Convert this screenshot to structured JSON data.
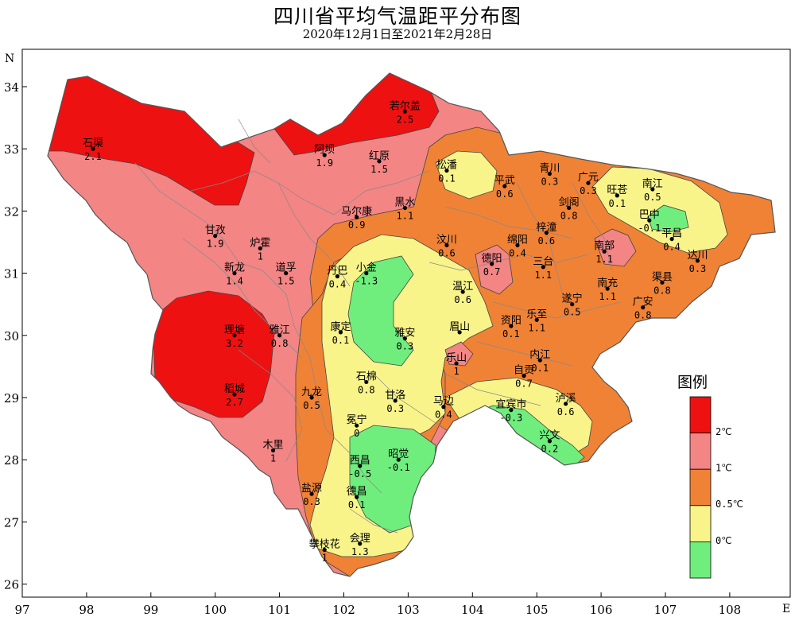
{
  "title": "四川省平均气温距平分布图",
  "subtitle": "2020年12月1日至2021年2月28日",
  "axes": {
    "lon_ticks": [
      "97",
      "98",
      "99",
      "100",
      "101",
      "102",
      "103",
      "104",
      "105",
      "106",
      "107",
      "108"
    ],
    "lat_ticks": [
      "34",
      "33",
      "32",
      "31",
      "30",
      "29",
      "28",
      "27",
      "26"
    ],
    "north_label": "N",
    "east_label": "E"
  },
  "legend": {
    "title": "图例",
    "classes": [
      {
        "label": "2℃",
        "color": "#ee1111"
      },
      {
        "label": "1℃",
        "color": "#f38585"
      },
      {
        "label": "0.5℃",
        "color": "#f08236"
      },
      {
        "label": "0℃",
        "color": "#f8f48a"
      },
      {
        "label": "",
        "color": "#6fee7e"
      }
    ]
  },
  "colors": {
    "class_2": "#ee1111",
    "class_1": "#f38585",
    "class_05": "#f08236",
    "class_0": "#f8f48a",
    "class_neg": "#6fee7e",
    "boundary": "#777777",
    "station": "#000000"
  },
  "stations": [
    {
      "name": "石渠",
      "value": "2.1",
      "lon": 98.1,
      "lat": 33.0
    },
    {
      "name": "阿坝",
      "value": "1.9",
      "lon": 101.7,
      "lat": 32.9
    },
    {
      "name": "若尔盖",
      "value": "2.5",
      "lon": 102.95,
      "lat": 33.6
    },
    {
      "name": "红原",
      "value": "1.5",
      "lon": 102.55,
      "lat": 32.8
    },
    {
      "name": "松潘",
      "value": "0.1",
      "lon": 103.6,
      "lat": 32.65
    },
    {
      "name": "平武",
      "value": "0.6",
      "lon": 104.5,
      "lat": 32.4
    },
    {
      "name": "青川",
      "value": "0.3",
      "lon": 105.2,
      "lat": 32.6
    },
    {
      "name": "广元",
      "value": "0.3",
      "lon": 105.8,
      "lat": 32.45
    },
    {
      "name": "旺苍",
      "value": "0.1",
      "lon": 106.25,
      "lat": 32.25
    },
    {
      "name": "南江",
      "value": "0.5",
      "lon": 106.8,
      "lat": 32.35
    },
    {
      "name": "剑阁",
      "value": "0.8",
      "lon": 105.5,
      "lat": 32.05
    },
    {
      "name": "黑水",
      "value": "1.1",
      "lon": 102.95,
      "lat": 32.05
    },
    {
      "name": "马尔康",
      "value": "0.9",
      "lon": 102.2,
      "lat": 31.9
    },
    {
      "name": "甘孜",
      "value": "1.9",
      "lon": 100.0,
      "lat": 31.6
    },
    {
      "name": "炉霍",
      "value": "1",
      "lon": 100.7,
      "lat": 31.4
    },
    {
      "name": "巴中",
      "value": "-0.1",
      "lon": 106.75,
      "lat": 31.85
    },
    {
      "name": "平昌",
      "value": "0.4",
      "lon": 107.1,
      "lat": 31.55
    },
    {
      "name": "绵阳",
      "value": "0.4",
      "lon": 104.7,
      "lat": 31.45
    },
    {
      "name": "梓潼",
      "value": "0.6",
      "lon": 105.15,
      "lat": 31.65
    },
    {
      "name": "汶川",
      "value": "0.6",
      "lon": 103.6,
      "lat": 31.45
    },
    {
      "name": "南部",
      "value": "1.1",
      "lon": 106.05,
      "lat": 31.35
    },
    {
      "name": "达川",
      "value": "0.3",
      "lon": 107.5,
      "lat": 31.2
    },
    {
      "name": "三台",
      "value": "1.1",
      "lon": 105.1,
      "lat": 31.1
    },
    {
      "name": "德阳",
      "value": "0.7",
      "lon": 104.3,
      "lat": 31.15
    },
    {
      "name": "新龙",
      "value": "1.4",
      "lon": 100.3,
      "lat": 31.0
    },
    {
      "name": "道孚",
      "value": "1.5",
      "lon": 101.1,
      "lat": 31.0
    },
    {
      "name": "丹巴",
      "value": "0.4",
      "lon": 101.9,
      "lat": 30.95
    },
    {
      "name": "小金",
      "value": "-1.3",
      "lon": 102.35,
      "lat": 31.0
    },
    {
      "name": "南充",
      "value": "1.1",
      "lon": 106.1,
      "lat": 30.75
    },
    {
      "name": "渠县",
      "value": "0.8",
      "lon": 106.95,
      "lat": 30.85
    },
    {
      "name": "温江",
      "value": "0.6",
      "lon": 103.85,
      "lat": 30.7
    },
    {
      "name": "遂宁",
      "value": "0.5",
      "lon": 105.55,
      "lat": 30.5
    },
    {
      "name": "广安",
      "value": "0.8",
      "lon": 106.65,
      "lat": 30.45
    },
    {
      "name": "乐至",
      "value": "1.1",
      "lon": 105.0,
      "lat": 30.25
    },
    {
      "name": "资阳",
      "value": "0.1",
      "lon": 104.6,
      "lat": 30.15
    },
    {
      "name": "眉山",
      "value": "",
      "lon": 103.8,
      "lat": 30.05
    },
    {
      "name": "理塘",
      "value": "3.2",
      "lon": 100.3,
      "lat": 30.0
    },
    {
      "name": "雅江",
      "value": "0.8",
      "lon": 101.0,
      "lat": 30.0
    },
    {
      "name": "康定",
      "value": "0.1",
      "lon": 101.95,
      "lat": 30.05
    },
    {
      "name": "雅安",
      "value": "0.3",
      "lon": 102.95,
      "lat": 29.95
    },
    {
      "name": "内江",
      "value": "0.1",
      "lon": 105.05,
      "lat": 29.6
    },
    {
      "name": "乐山",
      "value": "1",
      "lon": 103.75,
      "lat": 29.55
    },
    {
      "name": "自贡",
      "value": "0.7",
      "lon": 104.8,
      "lat": 29.35
    },
    {
      "name": "石棉",
      "value": "0.8",
      "lon": 102.35,
      "lat": 29.25
    },
    {
      "name": "稻城",
      "value": "2.7",
      "lon": 100.3,
      "lat": 29.05
    },
    {
      "name": "九龙",
      "value": "0.5",
      "lon": 101.5,
      "lat": 29.0
    },
    {
      "name": "甘洛",
      "value": "0.3",
      "lon": 102.8,
      "lat": 28.95
    },
    {
      "name": "马边",
      "value": "0.4",
      "lon": 103.55,
      "lat": 28.85
    },
    {
      "name": "宜宾市",
      "value": "-0.3",
      "lon": 104.6,
      "lat": 28.8
    },
    {
      "name": "泸溪",
      "value": "0.6",
      "lon": 105.45,
      "lat": 28.9
    },
    {
      "name": "冕宁",
      "value": "0",
      "lon": 102.2,
      "lat": 28.55
    },
    {
      "name": "兴文",
      "value": "0.2",
      "lon": 105.2,
      "lat": 28.3
    },
    {
      "name": "木里",
      "value": "1",
      "lon": 100.9,
      "lat": 28.15
    },
    {
      "name": "西昌",
      "value": "-0.5",
      "lon": 102.25,
      "lat": 27.9
    },
    {
      "name": "昭觉",
      "value": "-0.1",
      "lon": 102.85,
      "lat": 28.0
    },
    {
      "name": "盐源",
      "value": "0.3",
      "lon": 101.5,
      "lat": 27.45
    },
    {
      "name": "德昌",
      "value": "0.1",
      "lon": 102.2,
      "lat": 27.4
    },
    {
      "name": "攀枝花",
      "value": "1",
      "lon": 101.7,
      "lat": 26.55
    },
    {
      "name": "会理",
      "value": "1.3",
      "lon": 102.25,
      "lat": 26.65
    }
  ]
}
